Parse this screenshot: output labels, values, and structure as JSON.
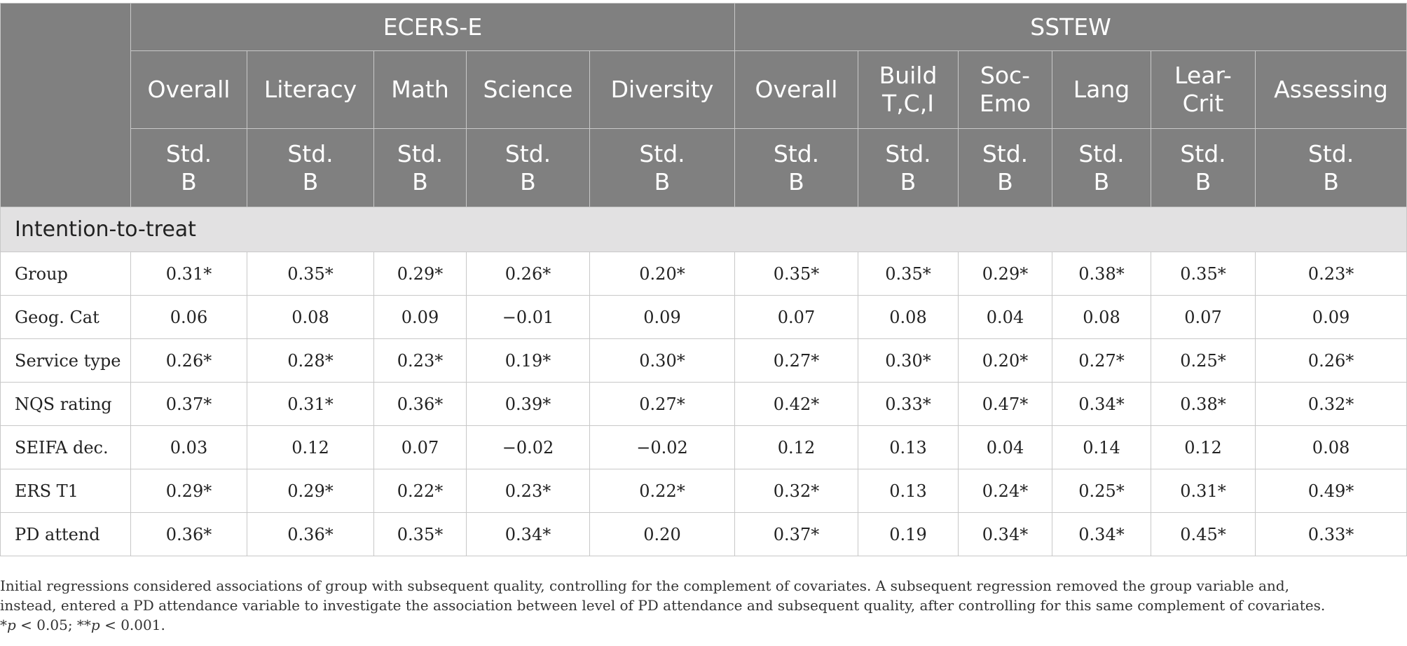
{
  "groups": [
    {
      "label": "ECERS-E",
      "colspan": 5
    },
    {
      "label": "SSTEW",
      "colspan": 6
    }
  ],
  "subheaders": [
    [
      "Overall"
    ],
    [
      "Literacy"
    ],
    [
      "Math"
    ],
    [
      "Science"
    ],
    [
      "Diversity"
    ],
    [
      "Overall"
    ],
    [
      "Build",
      "T,C,I"
    ],
    [
      "Soc-",
      "Emo"
    ],
    [
      "Lang"
    ],
    [
      "Lear-",
      "Crit"
    ],
    [
      "Assessing"
    ]
  ],
  "stat_label": [
    "Std.",
    "B"
  ],
  "section_label": "Intention-to-treat",
  "rows": [
    {
      "label": "Group",
      "values": [
        "0.31*",
        "0.35*",
        "0.29*",
        "0.26*",
        "0.20*",
        "0.35*",
        "0.35*",
        "0.29*",
        "0.38*",
        "0.35*",
        "0.23*"
      ]
    },
    {
      "label": "Geog. Cat",
      "values": [
        "0.06",
        "0.08",
        "0.09",
        "−0.01",
        "0.09",
        "0.07",
        "0.08",
        "0.04",
        "0.08",
        "0.07",
        "0.09"
      ]
    },
    {
      "label": "Service type",
      "values": [
        "0.26*",
        "0.28*",
        "0.23*",
        "0.19*",
        "0.30*",
        "0.27*",
        "0.30*",
        "0.20*",
        "0.27*",
        "0.25*",
        "0.26*"
      ]
    },
    {
      "label": "NQS rating",
      "values": [
        "0.37*",
        "0.31*",
        "0.36*",
        "0.39*",
        "0.27*",
        "0.42*",
        "0.33*",
        "0.47*",
        "0.34*",
        "0.38*",
        "0.32*"
      ]
    },
    {
      "label": "SEIFA dec.",
      "values": [
        "0.03",
        "0.12",
        "0.07",
        "−0.02",
        "−0.02",
        "0.12",
        "0.13",
        "0.04",
        "0.14",
        "0.12",
        "0.08"
      ]
    },
    {
      "label": "ERS T1",
      "values": [
        "0.29*",
        "0.29*",
        "0.22*",
        "0.23*",
        "0.22*",
        "0.32*",
        "0.13",
        "0.24*",
        "0.25*",
        "0.31*",
        "0.49*"
      ]
    },
    {
      "label": "PD attend",
      "values": [
        "0.36*",
        "0.36*",
        "0.35*",
        "0.34*",
        "0.20",
        "0.37*",
        "0.19",
        "0.34*",
        "0.34*",
        "0.45*",
        "0.33*"
      ]
    }
  ],
  "note_lines": [
    "Initial regressions considered associations of group with subsequent quality, controlling for the complement of covariates. A subsequent regression removed the group variable and,",
    "instead, entered a PD attendance variable to investigate the association between level of PD attendance and subsequent quality, after controlling for this same complement of covariates."
  ],
  "significance": {
    "star1": "*",
    "p1_var": "p",
    "p1_rest": " < 0.05; ",
    "star2": "**",
    "p2_var": "p",
    "p2_rest": " < 0.001."
  }
}
